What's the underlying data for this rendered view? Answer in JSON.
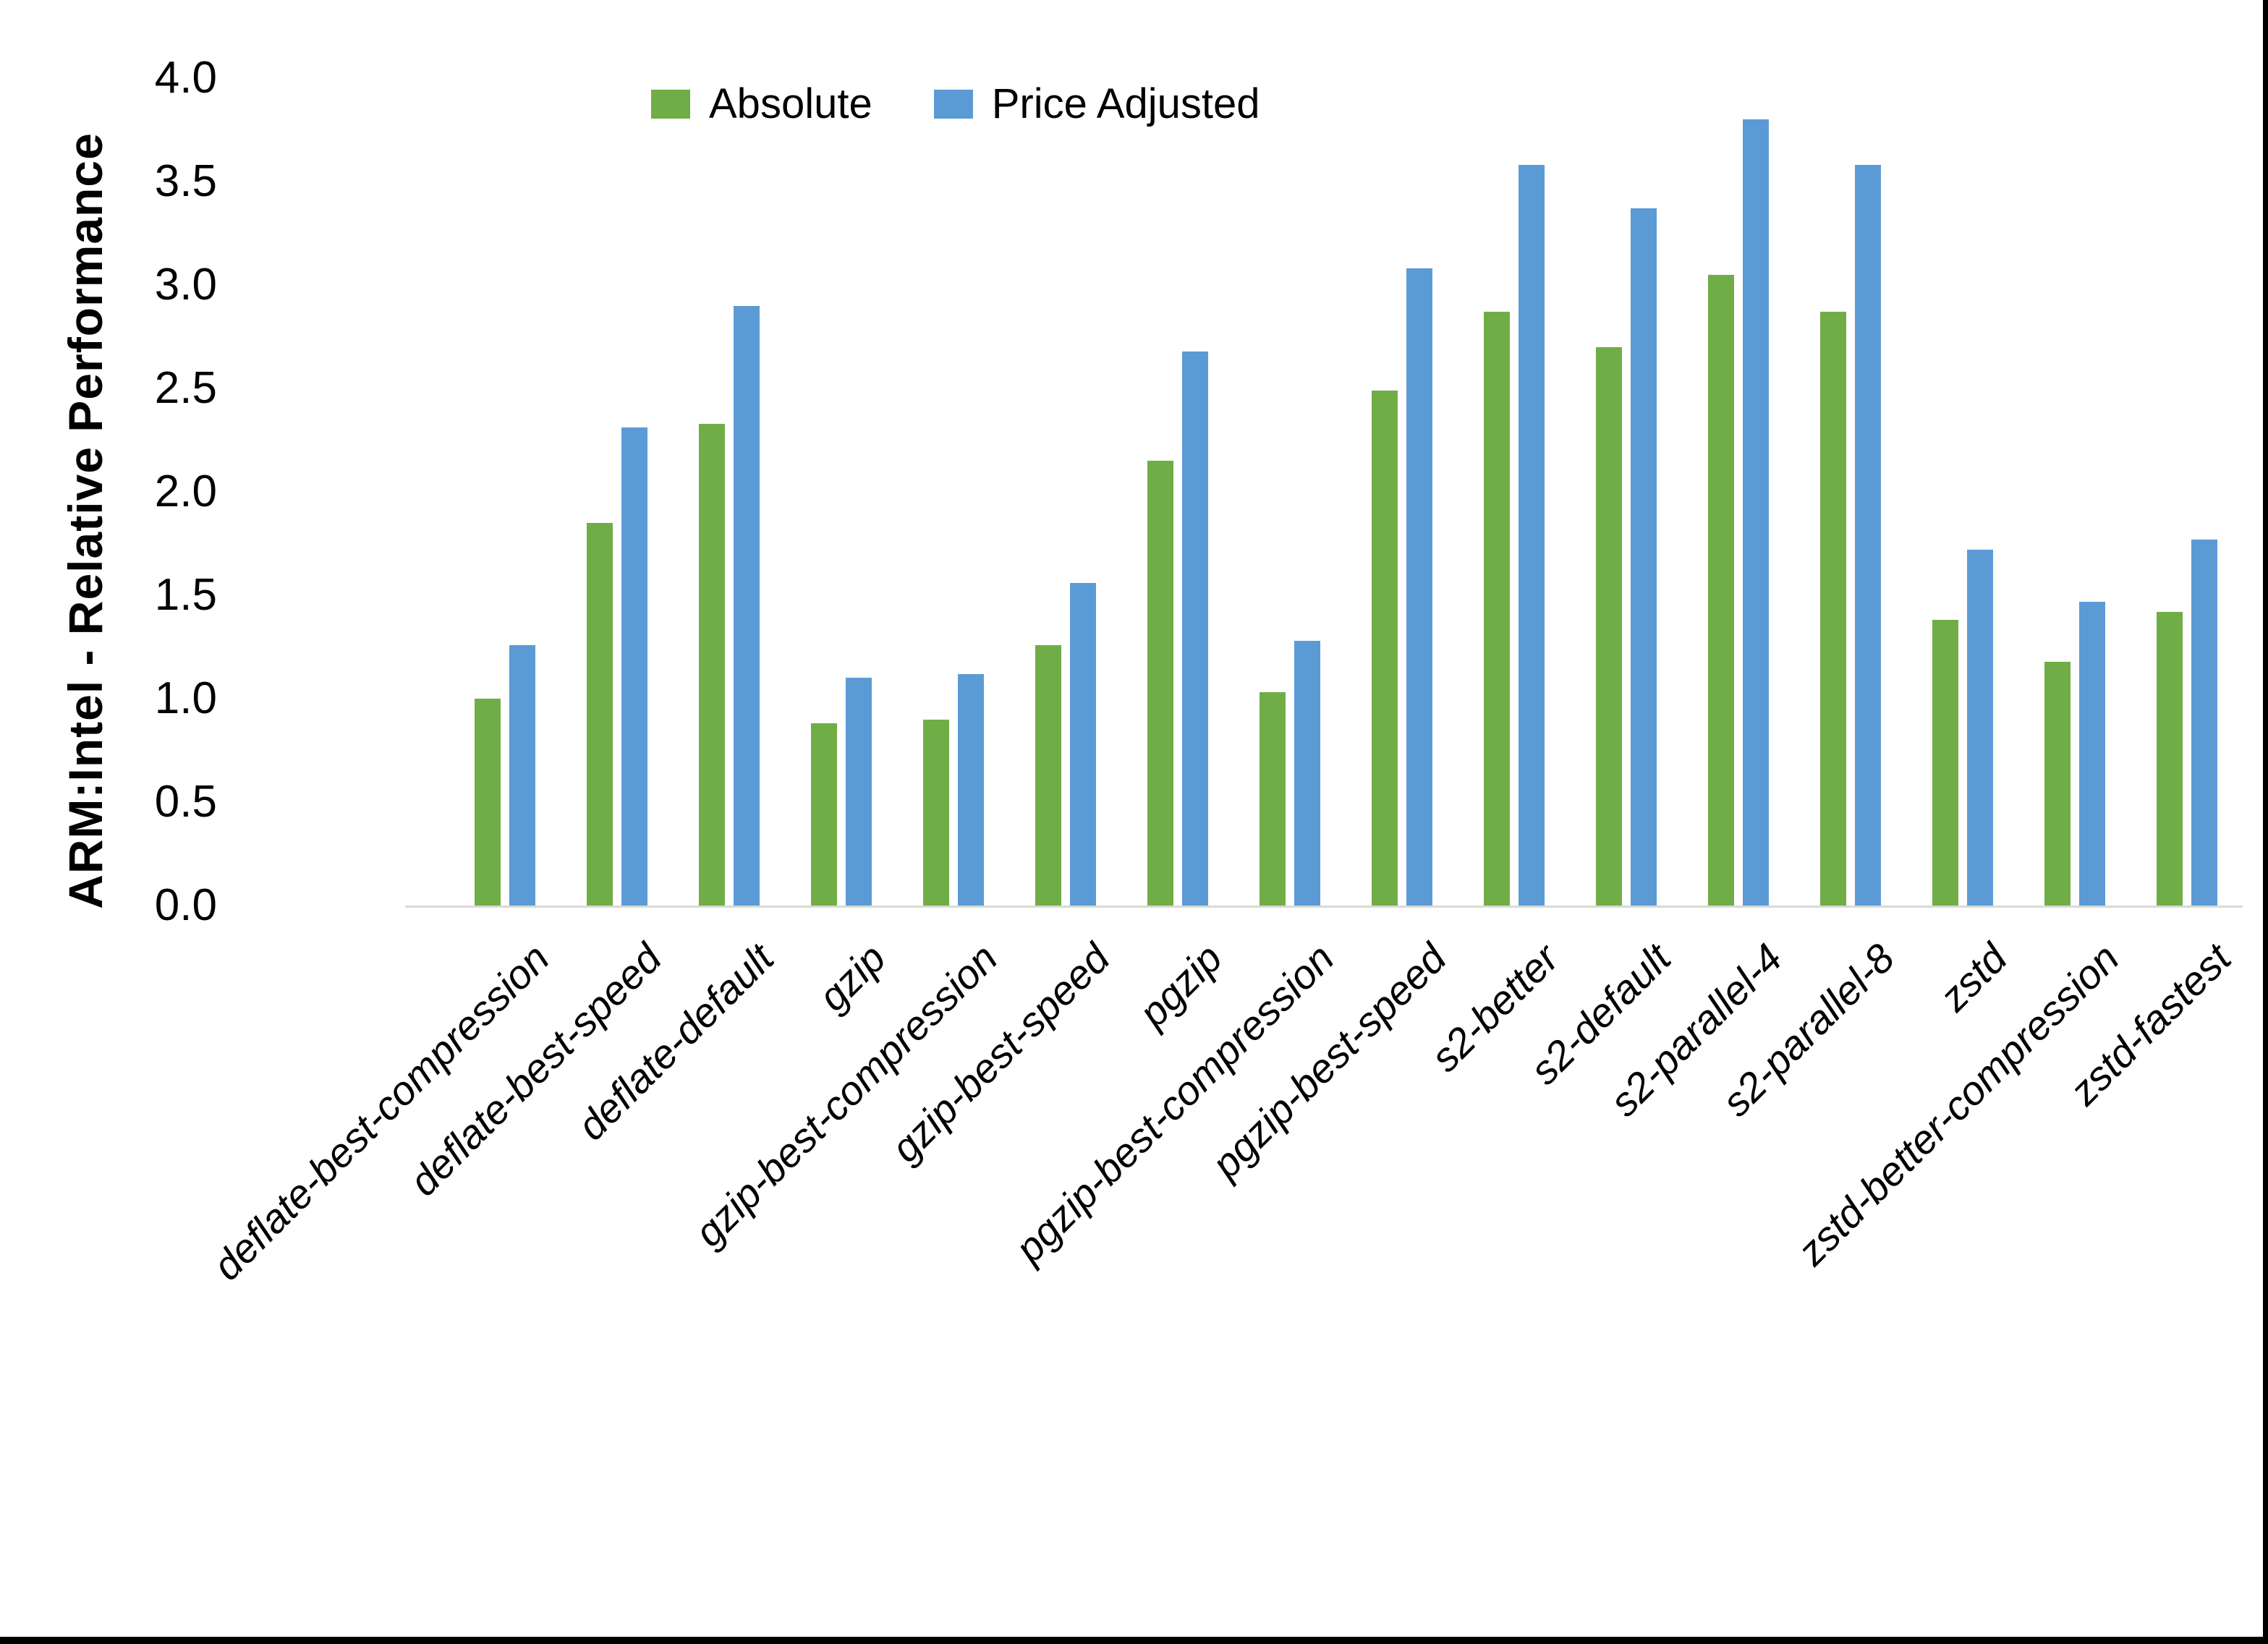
{
  "chart_data": {
    "type": "bar",
    "title": "",
    "xlabel": "",
    "ylabel": "ARM:Intel - Relative Performance",
    "ylim": [
      0.0,
      4.0
    ],
    "ytick_step": 0.5,
    "ytick_labels": [
      "0.0",
      "0.5",
      "1.0",
      "1.5",
      "2.0",
      "2.5",
      "3.0",
      "3.5",
      "4.0"
    ],
    "grid": false,
    "legend_position": "top-center",
    "axis_line_color": "#d9d9d9",
    "background_color": "#ffffff",
    "categories": [
      "deflate-best-compression",
      "deflate-best-speed",
      "deflate-default",
      "gzip",
      "gzip-best-compression",
      "gzip-best-speed",
      "pgzip",
      "pgzip-best-compression",
      "pgzip-best-speed",
      "s2-better",
      "s2-default",
      "s2-parallel-4",
      "s2-parallel-8",
      "zstd",
      "zstd-better-compression",
      "zstd-fastest"
    ],
    "series": [
      {
        "name": "Absolute",
        "color": "#70AD47",
        "values": [
          1.0,
          1.85,
          2.33,
          0.88,
          0.9,
          1.26,
          2.15,
          1.03,
          2.49,
          2.87,
          2.7,
          3.05,
          2.87,
          1.38,
          1.18,
          1.42
        ]
      },
      {
        "name": "Price Adjusted",
        "color": "#5B9BD5",
        "values": [
          1.26,
          2.31,
          2.9,
          1.1,
          1.12,
          1.56,
          2.68,
          1.28,
          3.08,
          3.58,
          3.37,
          3.8,
          3.58,
          1.72,
          1.47,
          1.77
        ]
      }
    ]
  }
}
